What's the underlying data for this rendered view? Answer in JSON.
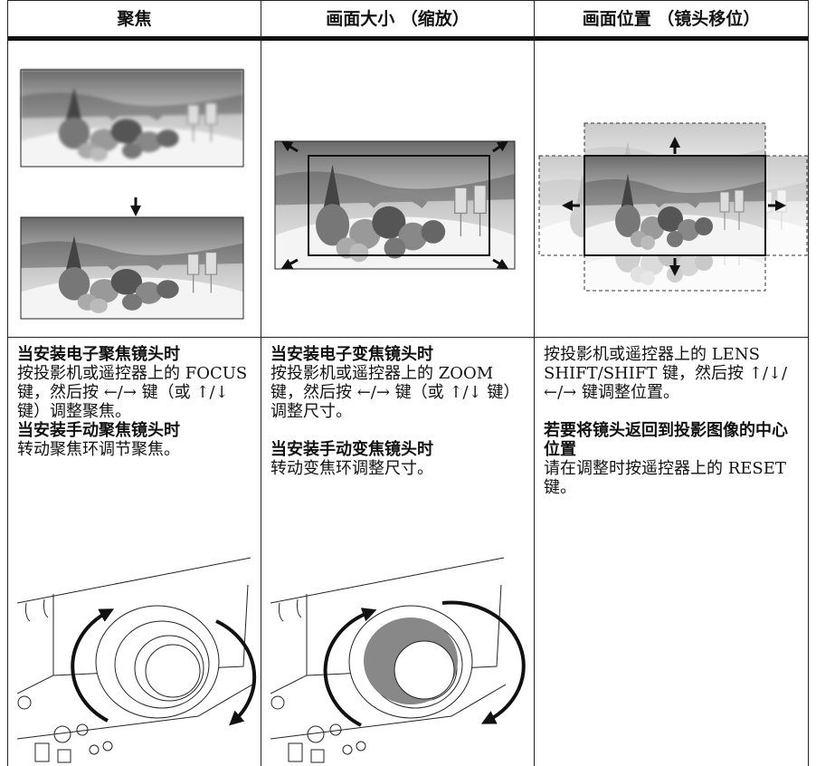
{
  "columns": [
    {
      "header": "聚焦",
      "sections": [
        {
          "title": "当安装电子聚焦镜头时",
          "text": "按投影机或遥控器上的 FOCUS 键，然后按 ←/→ 键（或 ↑/↓ 键）调整聚焦。"
        },
        {
          "title": "当安装手动聚焦镜头时",
          "text": "转动聚焦环调节聚焦。"
        }
      ]
    },
    {
      "header": "画面大小 （缩放）",
      "sections": [
        {
          "title": "当安装电子变焦镜头时",
          "text": "按投影机或遥控器上的 ZOOM 键，然后按 ←/→ 键（或 ↑/↓ 键）调整尺寸。"
        },
        {
          "title": "当安装手动变焦镜头时",
          "text": "转动变焦环调整尺寸。"
        }
      ]
    },
    {
      "header": "画面位置 （镜头移位）",
      "sections": [
        {
          "text": "按投影机或遥控器上的 LENS SHIFT/SHIFT 键，然后按 ↑/↓/←/→ 键调整位置。"
        },
        {
          "title": "若要将镜头返回到投影图像的中心位置",
          "text": "请在调整时按遥控器上的 RESET 键。"
        }
      ]
    }
  ]
}
